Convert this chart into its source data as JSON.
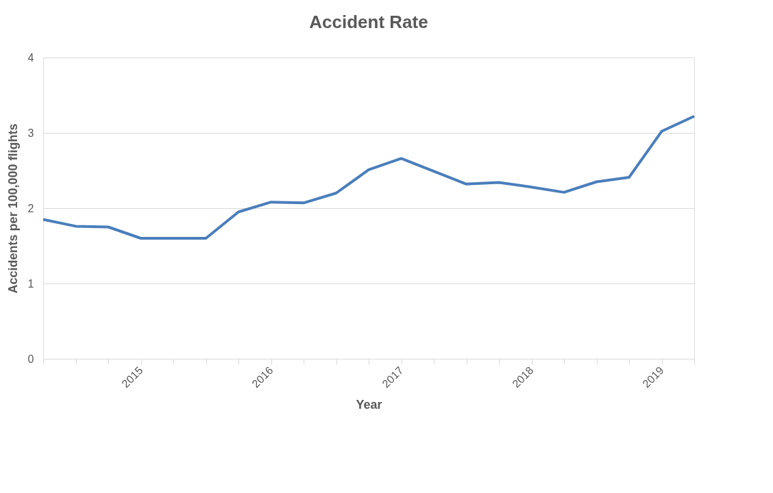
{
  "chart_data": {
    "type": "line",
    "title": "Accident Rate",
    "xlabel": "Year",
    "ylabel": "Accidents per 100,000 flights",
    "categories": [
      null,
      null,
      null,
      "2015",
      null,
      null,
      null,
      "2016",
      null,
      null,
      null,
      "2017",
      null,
      null,
      null,
      "2018",
      null,
      null,
      null,
      "2019",
      null
    ],
    "series": [
      {
        "color": "#4a7ebb",
        "values": [
          1.85,
          1.76,
          1.75,
          1.6,
          1.6,
          1.6,
          1.95,
          2.08,
          2.07,
          2.2,
          2.51,
          2.66,
          2.49,
          2.32,
          2.34,
          2.28,
          2.21,
          2.35,
          2.41,
          3.02,
          3.22
        ]
      }
    ],
    "ylim": [
      0,
      4
    ],
    "yticks": [
      0,
      1,
      2,
      3,
      4
    ],
    "grid": "y",
    "marker": "none",
    "line_style": "solid"
  }
}
